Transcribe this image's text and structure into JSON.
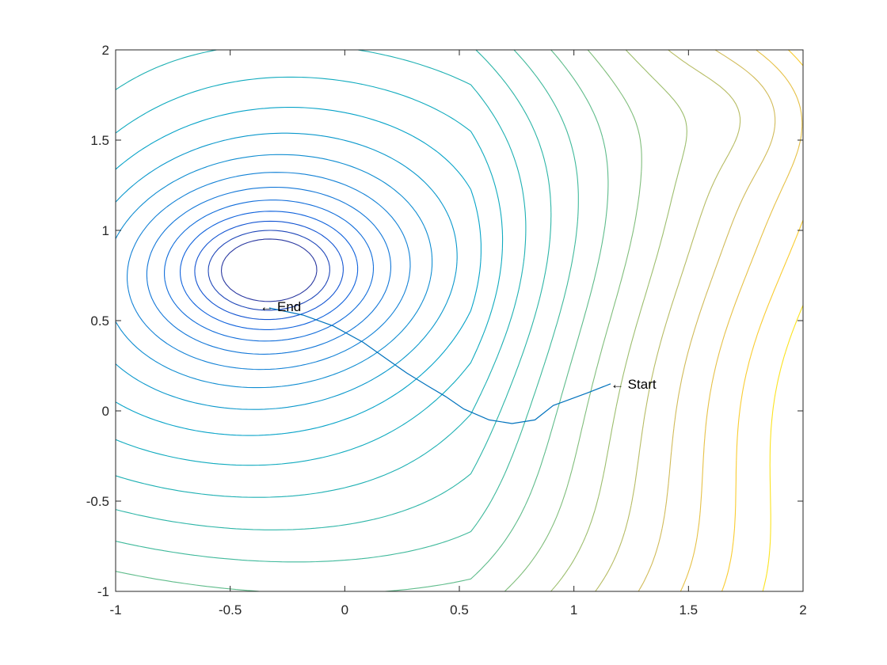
{
  "chart_data": {
    "type": "contour",
    "title": "",
    "xlabel": "",
    "ylabel": "",
    "xlim": [
      -1,
      2
    ],
    "ylim": [
      -1,
      2
    ],
    "xticks": [
      -1,
      -0.5,
      0,
      0.5,
      1,
      1.5,
      2
    ],
    "yticks": [
      -1,
      -0.5,
      0,
      0.5,
      1,
      1.5,
      2
    ],
    "xtick_labels": [
      "-1",
      "-0.5",
      "0",
      "0.5",
      "1",
      "1.5",
      "2"
    ],
    "ytick_labels": [
      "-1",
      "-0.5",
      "0",
      "0.5",
      "1",
      "1.5",
      "2"
    ],
    "grid": false,
    "colormap": "parula",
    "minimum": {
      "x": -0.33,
      "y": 0.78
    },
    "contour_levels": 22,
    "path_color": "#0072BD",
    "path": {
      "x": [
        1.16,
        1.06,
        0.91,
        0.83,
        0.73,
        0.63,
        0.52,
        0.44,
        0.36,
        0.27,
        0.18,
        0.08,
        -0.05,
        -0.18,
        -0.33
      ],
      "y": [
        0.15,
        0.1,
        0.03,
        -0.05,
        -0.07,
        -0.05,
        0.01,
        0.08,
        0.14,
        0.21,
        0.29,
        0.38,
        0.47,
        0.53,
        0.57
      ]
    },
    "annotations": [
      {
        "text": "← Start",
        "x": 1.16,
        "y": 0.15
      },
      {
        "text": "← End",
        "x": -0.37,
        "y": 0.58
      }
    ]
  }
}
